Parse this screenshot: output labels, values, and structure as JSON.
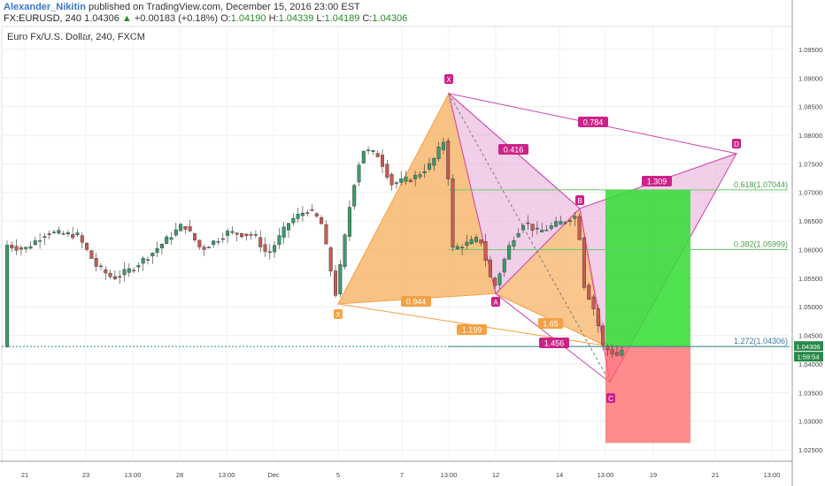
{
  "header": {
    "author": "Alexander_Nikitin",
    "published": "published on TradingView.com, December 15, 2016 23:00 EST",
    "symbol": "FX:EURUSD, 240",
    "last": "1.04306",
    "change": "+0.00183 (+0.18%)",
    "open_label": "O:",
    "open": "1.04190",
    "high_label": "H:",
    "high": "1.04339",
    "low_label": "L:",
    "low": "1.04189",
    "close_label": "C:",
    "close": "1.04306",
    "up_arrow": "▲"
  },
  "chart_data": {
    "type": "candlestick",
    "title": "Euro Fx/U.S. Dollar, 240, FXCM",
    "ylim": [
      1.023,
      1.099
    ],
    "y_ticks": [
      "1.09500",
      "1.09000",
      "1.08500",
      "1.08000",
      "1.07500",
      "1.07000",
      "1.06500",
      "1.06000",
      "1.05500",
      "1.05000",
      "1.04500",
      "1.04000",
      "1.03500",
      "1.03000",
      "1.02500"
    ],
    "x_ticks": [
      "21",
      "23",
      "13:00",
      "28",
      "13:00",
      "Dec",
      "5",
      "7",
      "13:00",
      "12",
      "14",
      "13:00",
      "19",
      "21",
      "13:00"
    ],
    "last_price_label": "1.04306",
    "countdown_label": "1:59:54",
    "pattern_points": [
      "X",
      "A",
      "B",
      "C",
      "D"
    ],
    "fib_labels": {
      "level_0618": "0.618(1.07044)",
      "level_0382": "0.382(1.05999)",
      "level_1272": "1.272(1.04306)"
    },
    "ratio_labels": {
      "xa_ab": "0.944",
      "ab_bc": "1.65",
      "xb": "1.199",
      "xc": "0.416",
      "bd": "1.309",
      "xd": "0.784",
      "ac": "1.456"
    },
    "levels": {
      "fib_0618": 1.07044,
      "fib_0382": 1.05999,
      "fib_1272": 1.04306,
      "stop_loss": 1.0262,
      "take_profit": 1.0705
    },
    "pattern_prices": {
      "X1": 1.0505,
      "A1": 1.0873,
      "B1": 1.0523,
      "X2": 1.0873,
      "A2": 1.0523,
      "B2": 1.0672,
      "C2": 1.0368,
      "D2": 1.0768
    },
    "colors": {
      "up": "#3a9b6a",
      "down": "#c75b52",
      "pattern1": "#f5a142",
      "pattern2": "#e8a7d6",
      "pattern_line": "#cc44aa",
      "label_orange": "#f5a142",
      "label_magenta": "#cc2288",
      "profit": "#33dd33",
      "loss": "#ff6666",
      "fib_line": "#66cc66",
      "price_line": "#4477aa"
    }
  }
}
